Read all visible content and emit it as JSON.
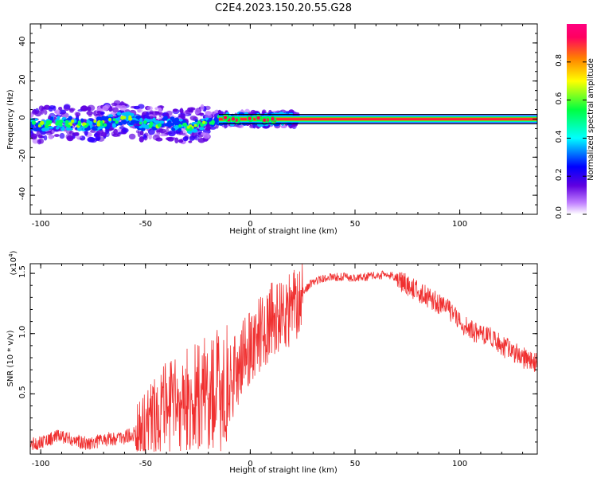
{
  "title": "C2E4.2023.150.20.55.G28",
  "chart_data": [
    {
      "type": "heatmap",
      "xlabel": "Height of straight line (km)",
      "ylabel": "Frequency (Hz)",
      "xlim": [
        -105,
        137
      ],
      "ylim": [
        -50,
        50
      ],
      "x_ticks": [
        -100,
        -50,
        0,
        50,
        100
      ],
      "y_ticks": [
        -40,
        -20,
        0,
        20,
        40
      ],
      "grid": false,
      "colorbar": {
        "label": "Normalized spectral amplitude",
        "range": [
          0,
          1
        ],
        "ticks": [
          "0.0",
          "0.2",
          "0.4",
          "0.6",
          "0.8"
        ],
        "colors": [
          "#ffffff",
          "#c080ff",
          "#6000e0",
          "#0000ff",
          "#00ffff",
          "#00ff40",
          "#ffff00",
          "#ff8000",
          "#ff0060"
        ]
      },
      "ridge": [
        {
          "x": -100,
          "y": -3
        },
        {
          "x": -90,
          "y": -2
        },
        {
          "x": -80,
          "y": -3
        },
        {
          "x": -70,
          "y": -2
        },
        {
          "x": -60,
          "y": 1
        },
        {
          "x": -50,
          "y": -3
        },
        {
          "x": -40,
          "y": -2
        },
        {
          "x": -30,
          "y": -4
        },
        {
          "x": -20,
          "y": -2
        },
        {
          "x": -15,
          "y": 0
        },
        {
          "x": 0,
          "y": 0
        },
        {
          "x": 20,
          "y": 0
        },
        {
          "x": 137,
          "y": 0
        }
      ]
    },
    {
      "type": "line",
      "xlabel": "Height of straight line (km)",
      "ylabel": "SNR (10 * v/v)",
      "y_multiplier": "(x10^4)",
      "xlim": [
        -105,
        137
      ],
      "ylim": [
        0,
        15800
      ],
      "x_ticks": [
        -100,
        -50,
        0,
        50,
        100
      ],
      "y_ticks": [
        5000,
        10000,
        15000
      ],
      "y_tick_labels": [
        "0.5",
        "1.0",
        "1.5"
      ],
      "grid": false,
      "color": "#f03030",
      "series": [
        {
          "points": [
            {
              "x": -105,
              "y": 800
            },
            {
              "x": -100,
              "y": 1000
            },
            {
              "x": -95,
              "y": 1300
            },
            {
              "x": -90,
              "y": 1500
            },
            {
              "x": -85,
              "y": 1200
            },
            {
              "x": -80,
              "y": 900
            },
            {
              "x": -75,
              "y": 1000
            },
            {
              "x": -70,
              "y": 1200
            },
            {
              "x": -65,
              "y": 1300
            },
            {
              "x": -60,
              "y": 1400
            },
            {
              "x": -55,
              "y": 1700
            },
            {
              "x": -50,
              "y": 2500
            },
            {
              "x": -45,
              "y": 3200
            },
            {
              "x": -40,
              "y": 3800
            },
            {
              "x": -35,
              "y": 4000
            },
            {
              "x": -30,
              "y": 4300
            },
            {
              "x": -25,
              "y": 4800
            },
            {
              "x": -20,
              "y": 5000
            },
            {
              "x": -15,
              "y": 5200
            },
            {
              "x": -10,
              "y": 5600
            },
            {
              "x": -5,
              "y": 7500
            },
            {
              "x": 0,
              "y": 9000
            },
            {
              "x": 5,
              "y": 10000
            },
            {
              "x": 10,
              "y": 11000
            },
            {
              "x": 15,
              "y": 11500
            },
            {
              "x": 20,
              "y": 12000
            },
            {
              "x": 25,
              "y": 13500
            },
            {
              "x": 30,
              "y": 14300
            },
            {
              "x": 35,
              "y": 14600
            },
            {
              "x": 40,
              "y": 14700
            },
            {
              "x": 45,
              "y": 14700
            },
            {
              "x": 50,
              "y": 14600
            },
            {
              "x": 55,
              "y": 14700
            },
            {
              "x": 60,
              "y": 14800
            },
            {
              "x": 65,
              "y": 14900
            },
            {
              "x": 70,
              "y": 14600
            },
            {
              "x": 75,
              "y": 14000
            },
            {
              "x": 80,
              "y": 13500
            },
            {
              "x": 85,
              "y": 13000
            },
            {
              "x": 90,
              "y": 12500
            },
            {
              "x": 95,
              "y": 12000
            },
            {
              "x": 100,
              "y": 11000
            },
            {
              "x": 105,
              "y": 10300
            },
            {
              "x": 110,
              "y": 10000
            },
            {
              "x": 115,
              "y": 9600
            },
            {
              "x": 120,
              "y": 9000
            },
            {
              "x": 125,
              "y": 8500
            },
            {
              "x": 130,
              "y": 8000
            },
            {
              "x": 135,
              "y": 7600
            },
            {
              "x": 137,
              "y": 7800
            }
          ]
        }
      ]
    }
  ]
}
